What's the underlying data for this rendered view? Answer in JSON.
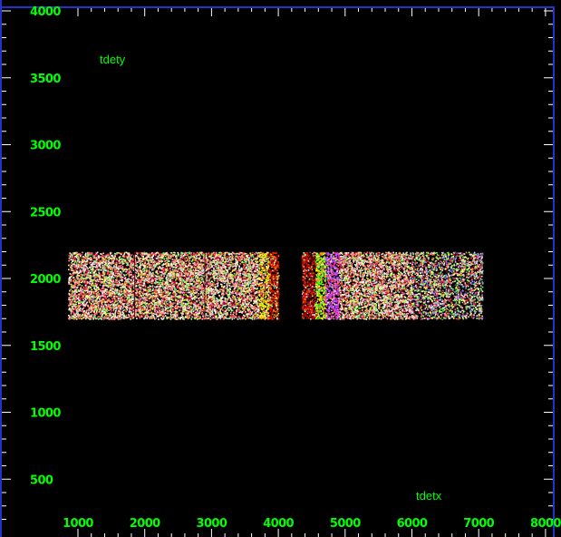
{
  "chart_data": {
    "type": "scatter",
    "title": "",
    "xlabel": "tdetx",
    "ylabel": "tdety",
    "xlim": [
      750,
      8000
    ],
    "ylim": [
      150,
      4000
    ],
    "x_ticks": [
      "1000",
      "2000",
      "3000",
      "4000",
      "5000",
      "6000",
      "7000",
      "8000"
    ],
    "y_ticks": [
      "500",
      "1000",
      "1500",
      "2000",
      "2500",
      "3000",
      "3500",
      "4000"
    ],
    "series": [
      {
        "x_range": [
          850,
          4000
        ],
        "y_range": [
          1700,
          2200
        ]
      },
      {
        "x_range": [
          4350,
          7050
        ],
        "y_range": [
          1700,
          2200
        ]
      }
    ],
    "grid": false,
    "legend": "none"
  },
  "colors": {
    "background": "#000000",
    "frame": "#2233cc",
    "tick_label": "#00ff00",
    "axis_label": "#00ff00",
    "tick_mark": "#ffffff"
  }
}
